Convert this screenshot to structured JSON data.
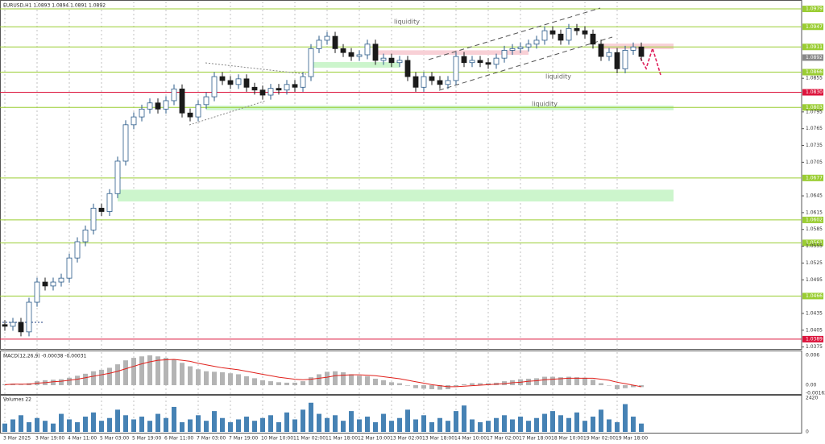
{
  "chart_data": [
    {
      "type": "candlestick",
      "title": "EURUSD,H1 1.0893 1.0894 1.0891 1.0892",
      "up_color": "#2b5b8a",
      "down_color": "#1a1a1a",
      "xlim": [
        -0.6,
        98.9
      ],
      "ylim": [
        1.0373,
        1.0992
      ],
      "yticks": [
        1.0375,
        1.0405,
        1.0435,
        1.0495,
        1.0525,
        1.0555,
        1.0585,
        1.0615,
        1.0645,
        1.0705,
        1.0735,
        1.0765,
        1.0795,
        1.0855
      ],
      "grid": true,
      "xticks": [
        {
          "value": 0,
          "label": "3 Mar 2025"
        },
        {
          "value": 4,
          "label": "3 Mar 19:00"
        },
        {
          "value": 8,
          "label": "4 Mar 11:00"
        },
        {
          "value": 12,
          "label": "5 Mar 03:00"
        },
        {
          "value": 16,
          "label": "5 Mar 19:00"
        },
        {
          "value": 20,
          "label": "6 Mar 11:00"
        },
        {
          "value": 24,
          "label": "7 Mar 03:00"
        },
        {
          "value": 28,
          "label": "7 Mar 19:00"
        },
        {
          "value": 32,
          "label": "10 Mar 10:00"
        },
        {
          "value": 36,
          "label": "11 Mar 02:00"
        },
        {
          "value": 40,
          "label": "11 Mar 18:00"
        },
        {
          "value": 44,
          "label": "12 Mar 10:00"
        },
        {
          "value": 48,
          "label": "13 Mar 02:00"
        },
        {
          "value": 52,
          "label": "13 Mar 18:00"
        },
        {
          "value": 56,
          "label": "14 Mar 10:00"
        },
        {
          "value": 60,
          "label": "17 Mar 02:00"
        },
        {
          "value": 64,
          "label": "17 Mar 18:00"
        },
        {
          "value": 68,
          "label": "18 Mar 10:00"
        },
        {
          "value": 72,
          "label": "19 Mar 02:00"
        },
        {
          "value": 76,
          "label": "19 Mar 18:00"
        }
      ],
      "open": [
        1.0415,
        1.0412,
        1.0419,
        1.0402,
        1.0455,
        1.0491,
        1.0484,
        1.0491,
        1.0498,
        1.0534,
        1.0563,
        1.0584,
        1.0623,
        1.0617,
        1.0649,
        1.0707,
        1.0772,
        1.0786,
        1.08,
        1.0811,
        1.08,
        1.0815,
        1.0836,
        1.0793,
        1.0786,
        1.0808,
        1.0822,
        1.0858,
        1.0851,
        1.0844,
        1.0854,
        1.0839,
        1.0834,
        1.0825,
        1.0837,
        1.0834,
        1.0844,
        1.0839,
        1.0858,
        1.0908,
        1.0923,
        1.093,
        1.0908,
        1.0901,
        1.0894,
        1.0897,
        1.0916,
        1.0887,
        1.0891,
        1.0883,
        1.0887,
        1.0858,
        1.0839,
        1.0858,
        1.0851,
        1.0844,
        1.0851,
        1.0894,
        1.0883,
        1.0887,
        1.0883,
        1.088,
        1.0891,
        1.0905,
        1.0908,
        1.0911,
        1.0916,
        1.0923,
        1.094,
        1.0934,
        1.0923,
        1.0944,
        1.094,
        1.0934,
        1.0916,
        1.0894,
        1.0901,
        1.0872,
        1.0905,
        1.0911
      ],
      "high": [
        1.0423,
        1.0427,
        1.0427,
        1.0463,
        1.0499,
        1.0499,
        1.0499,
        1.0506,
        1.0542,
        1.0571,
        1.0592,
        1.0631,
        1.0631,
        1.0657,
        1.0715,
        1.078,
        1.0794,
        1.0808,
        1.0819,
        1.0819,
        1.0823,
        1.0844,
        1.0844,
        1.0801,
        1.0816,
        1.083,
        1.0866,
        1.0866,
        1.0859,
        1.0862,
        1.0862,
        1.0847,
        1.0842,
        1.0845,
        1.0845,
        1.0852,
        1.0852,
        1.0866,
        1.0916,
        1.0931,
        1.0938,
        1.0938,
        1.0916,
        1.0909,
        1.0905,
        1.0924,
        1.0924,
        1.0899,
        1.0899,
        1.0895,
        1.0895,
        1.0866,
        1.0866,
        1.0866,
        1.0859,
        1.0859,
        1.0902,
        1.0902,
        1.0895,
        1.0895,
        1.0891,
        1.0899,
        1.0913,
        1.0916,
        1.0919,
        1.0924,
        1.0931,
        1.0948,
        1.0948,
        1.0942,
        1.0952,
        1.0952,
        1.0948,
        1.0942,
        1.0924,
        1.0909,
        1.0909,
        1.0913,
        1.0919,
        1.0919
      ],
      "low": [
        1.0404,
        1.0404,
        1.0394,
        1.0394,
        1.0447,
        1.0476,
        1.0476,
        1.0483,
        1.049,
        1.0526,
        1.0555,
        1.0576,
        1.0609,
        1.0609,
        1.0641,
        1.0699,
        1.0764,
        1.0778,
        1.0792,
        1.0792,
        1.0792,
        1.0807,
        1.0785,
        1.0778,
        1.0778,
        1.08,
        1.0814,
        1.0843,
        1.0836,
        1.0836,
        1.0831,
        1.0826,
        1.0817,
        1.0817,
        1.0826,
        1.0826,
        1.0831,
        1.0831,
        1.085,
        1.09,
        1.0915,
        1.09,
        1.0893,
        1.0886,
        1.0886,
        1.0889,
        1.0879,
        1.0879,
        1.0875,
        1.0875,
        1.085,
        1.0831,
        1.0831,
        1.0843,
        1.0836,
        1.0836,
        1.0843,
        1.0875,
        1.0875,
        1.0875,
        1.0872,
        1.0872,
        1.0883,
        1.0897,
        1.09,
        1.0903,
        1.0908,
        1.0915,
        1.0926,
        1.0915,
        1.0915,
        1.0932,
        1.0926,
        1.0908,
        1.0886,
        1.0886,
        1.0864,
        1.0864,
        1.0897,
        1.0886
      ],
      "close": [
        1.0412,
        1.0419,
        1.0402,
        1.0455,
        1.0491,
        1.0484,
        1.0491,
        1.0498,
        1.0534,
        1.0563,
        1.0584,
        1.0623,
        1.0617,
        1.0649,
        1.0707,
        1.0772,
        1.0786,
        1.08,
        1.0811,
        1.08,
        1.0815,
        1.0836,
        1.0793,
        1.0786,
        1.0808,
        1.0822,
        1.0858,
        1.0851,
        1.0844,
        1.0854,
        1.0839,
        1.0834,
        1.0825,
        1.0837,
        1.0834,
        1.0844,
        1.0839,
        1.0858,
        1.0908,
        1.0923,
        1.093,
        1.0908,
        1.0901,
        1.0894,
        1.0897,
        1.0916,
        1.0887,
        1.0891,
        1.0883,
        1.0887,
        1.0858,
        1.0839,
        1.0858,
        1.0851,
        1.0844,
        1.0851,
        1.0894,
        1.0883,
        1.0887,
        1.0883,
        1.088,
        1.0891,
        1.0905,
        1.0908,
        1.0911,
        1.0916,
        1.0923,
        1.094,
        1.0934,
        1.0923,
        1.0944,
        1.094,
        1.0934,
        1.0916,
        1.0894,
        1.0901,
        1.0872,
        1.0905,
        1.0911,
        1.0894
      ],
      "levels": [
        {
          "value": 1.0979,
          "color": "#9acd32"
        },
        {
          "value": 1.0947,
          "color": "#9acd32"
        },
        {
          "value": 1.0911,
          "color": "#9acd32"
        },
        {
          "value": 1.0866,
          "color": "#9acd32"
        },
        {
          "value": 1.083,
          "label": "1.0830",
          "color": "#dc143c"
        },
        {
          "value": 1.0803,
          "color": "#9acd32"
        },
        {
          "value": 1.0677,
          "color": "#9acd32"
        },
        {
          "value": 1.0602,
          "color": "#9acd32"
        },
        {
          "value": 1.0561,
          "color": "#9acd32"
        },
        {
          "value": 1.0466,
          "color": "#9acd32"
        },
        {
          "value": 1.0389,
          "color": "#dc143c"
        }
      ],
      "current_price": 1.0892,
      "zones": [
        {
          "low": 1.0635,
          "high": 1.0656,
          "start": 14,
          "end": 83,
          "color": "#ccf5cc"
        },
        {
          "low": 1.0798,
          "high": 1.0806,
          "start": 25,
          "end": 83,
          "color": "#ccf5cc"
        },
        {
          "low": 1.0874,
          "high": 1.0884,
          "start": 38,
          "end": 49,
          "color": "#ccf5cc"
        },
        {
          "low": 1.0897,
          "high": 1.0905,
          "start": 46,
          "end": 65,
          "color": "#f8d0d6"
        },
        {
          "low": 1.0907,
          "high": 1.0917,
          "start": 74,
          "end": 83,
          "color": "#f8d0d6"
        }
      ],
      "annotations": [
        "liquidity",
        "liquidity",
        "liquidity"
      ]
    },
    {
      "type": "macd",
      "label": "MACD(12,26,9) -0.00038 -0.00031",
      "ylim": [
        -0.00178,
        0.00665
      ],
      "yticks": [
        0.006,
        {
          "value": 0,
          "label": "0.00"
        },
        -0.00162
      ],
      "series": [
        {
          "color": "#b4b4b4",
          "values": [
            0.0002,
            0.0003,
            0.0001,
            0.0004,
            0.0008,
            0.001,
            0.0011,
            0.0012,
            0.0015,
            0.0019,
            0.0023,
            0.0028,
            0.0031,
            0.0035,
            0.0042,
            0.005,
            0.0055,
            0.0058,
            0.006,
            0.0058,
            0.0055,
            0.0052,
            0.0045,
            0.0038,
            0.0032,
            0.0028,
            0.0027,
            0.0026,
            0.0024,
            0.0022,
            0.0018,
            0.0014,
            0.001,
            0.0008,
            0.0006,
            0.0005,
            0.0005,
            0.0008,
            0.0016,
            0.0022,
            0.0027,
            0.0028,
            0.0026,
            0.0022,
            0.0019,
            0.0018,
            0.0013,
            0.001,
            0.0006,
            0.0004,
            -0.0001,
            -0.0006,
            -0.0007,
            -0.0008,
            -0.0009,
            -0.0008,
            -0.0002,
            0.0002,
            0.0004,
            0.0004,
            0.0004,
            0.0005,
            0.0008,
            0.001,
            0.0012,
            0.0013,
            0.0014,
            0.0017,
            0.0017,
            0.0016,
            0.0017,
            0.0016,
            0.0015,
            0.0011,
            0.0004,
            0.0,
            -0.0008,
            -0.0006,
            -0.0004,
            -0.00038
          ]
        },
        {
          "color": "#e0201b",
          "values": [
            0.0001,
            0.0002,
            0.0002,
            0.0002,
            0.0004,
            0.0005,
            0.0007,
            0.0008,
            0.001,
            0.0012,
            0.0015,
            0.0018,
            0.0021,
            0.0024,
            0.0028,
            0.0033,
            0.0038,
            0.0043,
            0.0047,
            0.005,
            0.0051,
            0.0052,
            0.005,
            0.0048,
            0.0044,
            0.0041,
            0.0038,
            0.0035,
            0.0033,
            0.0031,
            0.0028,
            0.0025,
            0.0022,
            0.0019,
            0.0016,
            0.0014,
            0.0012,
            0.0011,
            0.0012,
            0.0014,
            0.0016,
            0.0019,
            0.002,
            0.0021,
            0.0021,
            0.002,
            0.0019,
            0.0017,
            0.0015,
            0.0013,
            0.001,
            0.0007,
            0.0004,
            0.0001,
            -0.0001,
            -0.0003,
            -0.0003,
            -0.0002,
            -0.0001,
            0.0,
            0.0001,
            0.0002,
            0.0003,
            0.0005,
            0.0006,
            0.0008,
            0.0009,
            0.0011,
            0.0012,
            0.0013,
            0.0014,
            0.0014,
            0.0014,
            0.0014,
            0.0012,
            0.001,
            0.0006,
            0.0003,
            0.0,
            -0.00031
          ]
        }
      ]
    },
    {
      "type": "volume",
      "label": "Volumes 22",
      "color": "#4682b4",
      "ylim": [
        0,
        2550
      ],
      "yticks": [
        2420,
        0
      ],
      "values": [
        600,
        900,
        1200,
        700,
        1000,
        800,
        600,
        1300,
        900,
        700,
        1100,
        1400,
        800,
        1000,
        1600,
        1200,
        900,
        1100,
        800,
        1300,
        1000,
        1800,
        700,
        900,
        1200,
        800,
        1500,
        1000,
        700,
        900,
        1100,
        800,
        1000,
        1200,
        700,
        1400,
        900,
        1600,
        2100,
        1300,
        1000,
        1200,
        800,
        1500,
        900,
        1100,
        700,
        1300,
        800,
        1000,
        1600,
        900,
        1200,
        700,
        1000,
        800,
        1500,
        1900,
        900,
        700,
        800,
        1000,
        1200,
        900,
        1100,
        800,
        1000,
        1300,
        1500,
        1200,
        1000,
        1400,
        800,
        1100,
        1600,
        900,
        700,
        2000,
        1100,
        600
      ]
    }
  ]
}
